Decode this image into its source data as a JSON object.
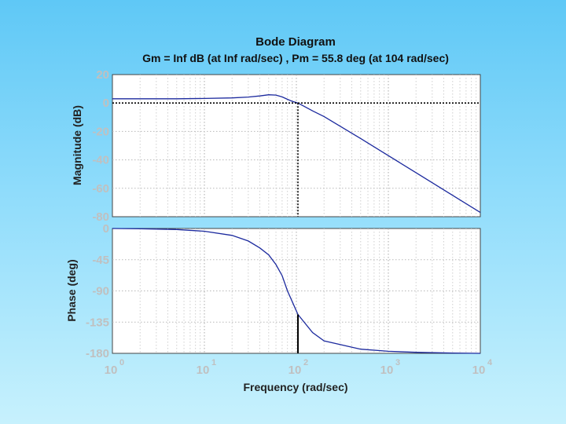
{
  "chart_data": {
    "type": "line",
    "title": "Bode Diagram",
    "subtitle": "Gm = Inf dB (at Inf rad/sec) ,  Pm = 55.8 deg (at 104 rad/sec)",
    "xlabel": "Frequency  (rad/sec)",
    "x_scale": "log",
    "xlim": [
      1,
      10000
    ],
    "x_ticks": [
      {
        "base": "10",
        "exp": "0"
      },
      {
        "base": "10",
        "exp": "1"
      },
      {
        "base": "10",
        "exp": "2"
      },
      {
        "base": "10",
        "exp": "3"
      },
      {
        "base": "10",
        "exp": "4"
      }
    ],
    "crossover_frequency": 104,
    "magnitude": {
      "ylabel": "Magnitude (dB)",
      "ylim": [
        -80,
        20
      ],
      "yticks": [
        "20",
        "0",
        "-20",
        "-40",
        "-60",
        "-80"
      ],
      "x": [
        1,
        2,
        5,
        10,
        20,
        30,
        40,
        50,
        60,
        70,
        80,
        90,
        104,
        150,
        200,
        500,
        1000,
        2000,
        5000,
        10000
      ],
      "y": [
        3,
        3,
        3,
        3.2,
        3.6,
        4.2,
        5,
        5.8,
        5.6,
        4.3,
        2.6,
        1.2,
        0,
        -5.5,
        -9.5,
        -25,
        -37,
        -49,
        -65,
        -77
      ]
    },
    "phase": {
      "ylabel": "Phase (deg)",
      "ylim": [
        -180,
        0
      ],
      "yticks": [
        "0",
        "-45",
        "-90",
        "-135",
        "-180"
      ],
      "x": [
        1,
        2,
        5,
        10,
        20,
        30,
        40,
        50,
        60,
        70,
        80,
        90,
        104,
        150,
        200,
        500,
        1000,
        2000,
        5000,
        10000
      ],
      "y": [
        0,
        -0.5,
        -1.5,
        -4,
        -10,
        -18,
        -28,
        -38,
        -52,
        -68,
        -90,
        -105,
        -124,
        -150,
        -162,
        -174,
        -177,
        -178.5,
        -179.5,
        -180
      ]
    },
    "grid": true,
    "zero_db_reference": true,
    "series_color": "#1c2a9e",
    "panel_color": "#ffffff",
    "frame_color": "#444444"
  }
}
